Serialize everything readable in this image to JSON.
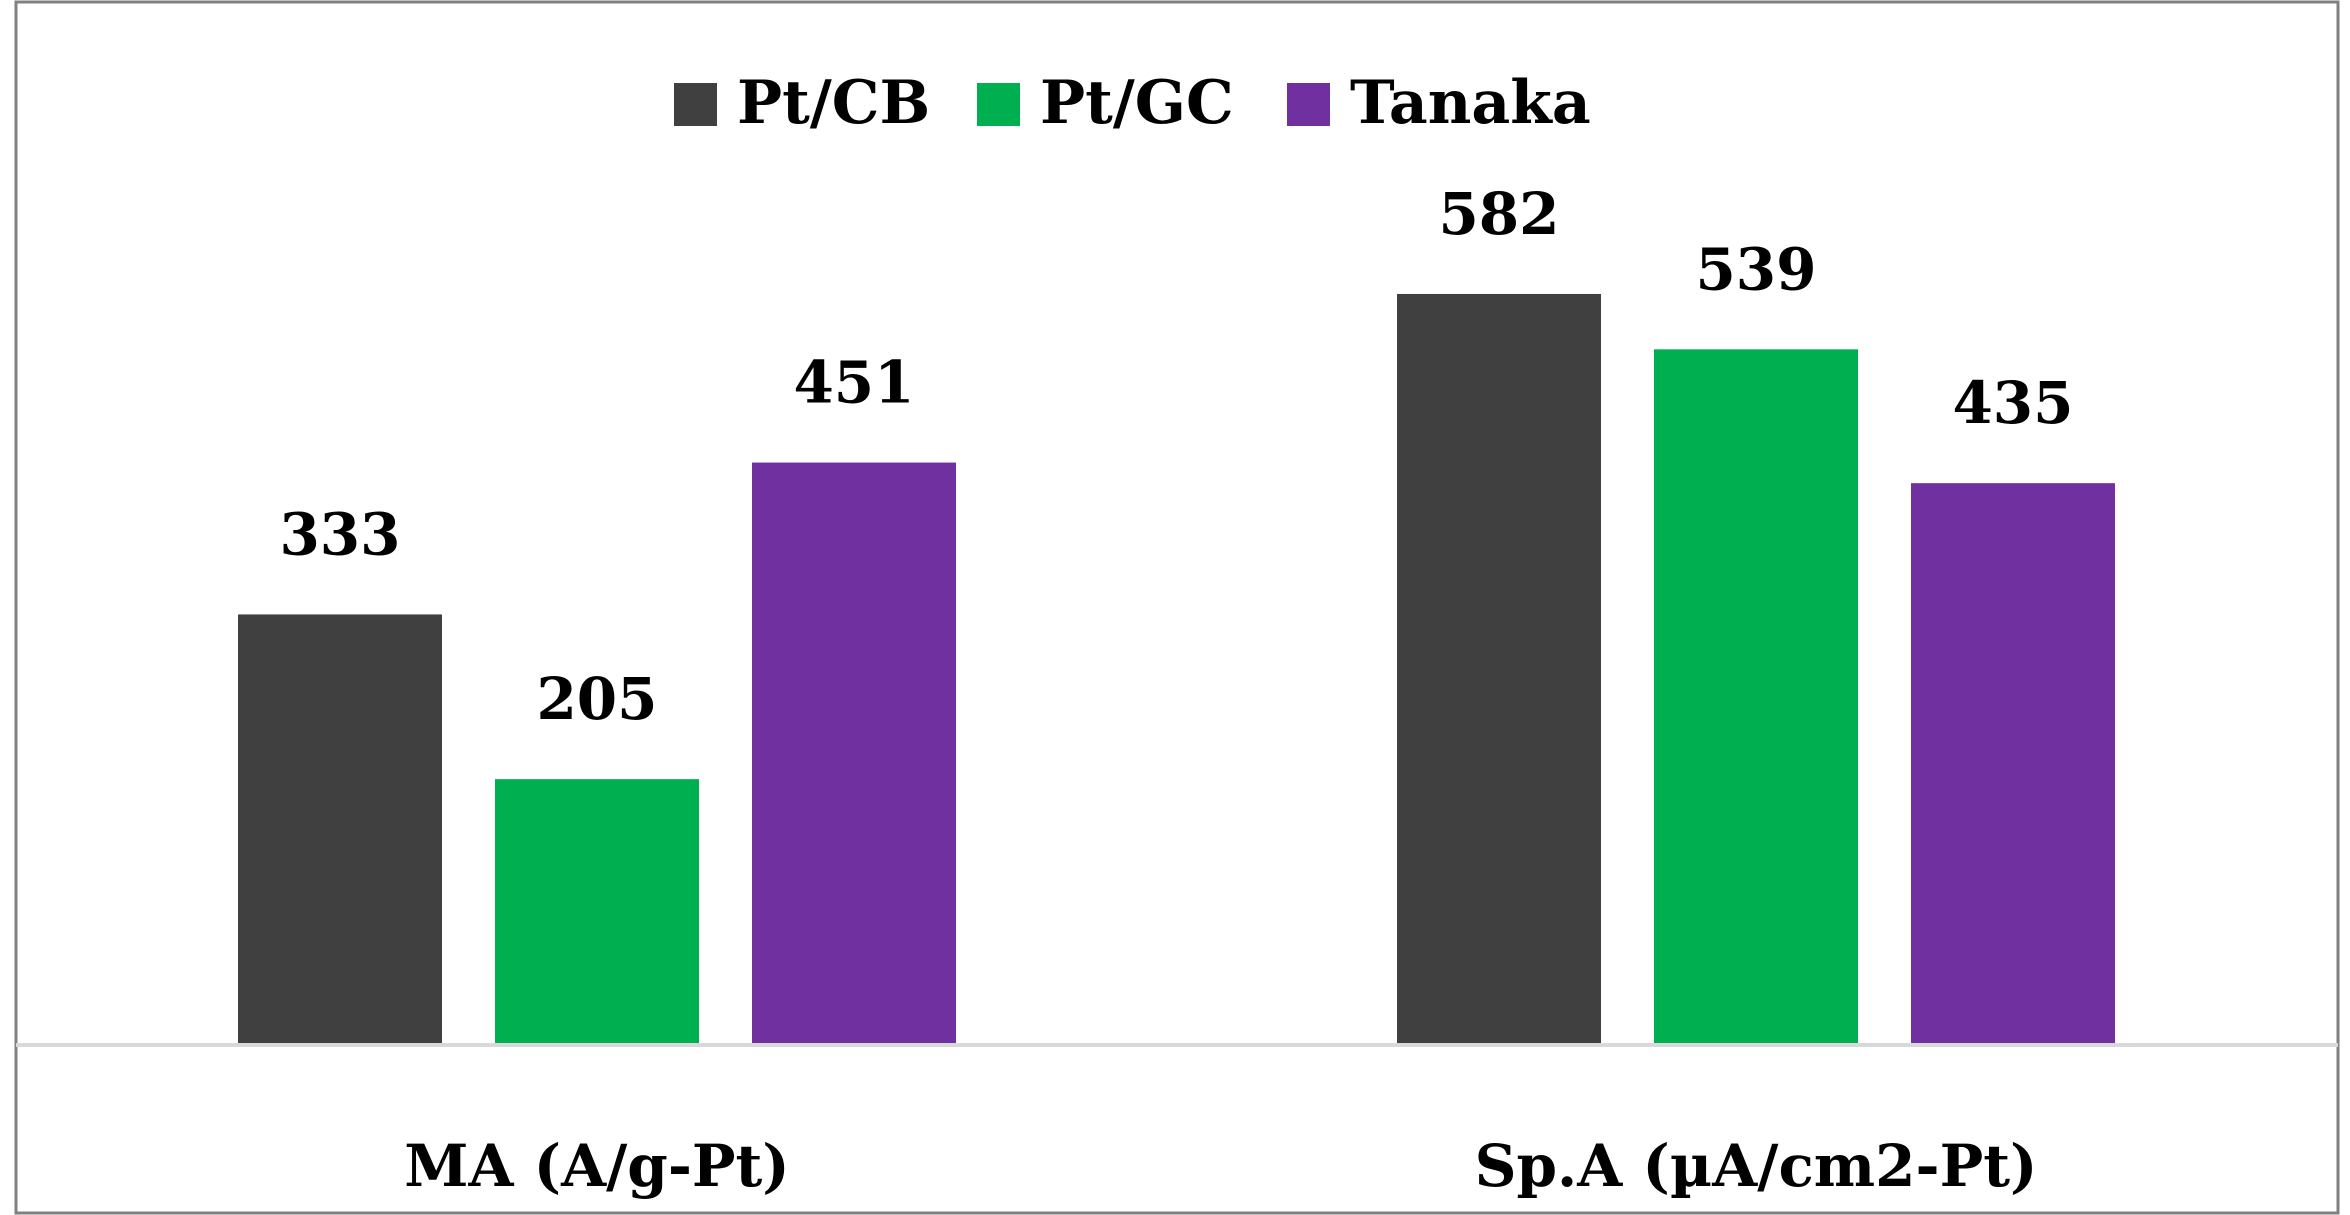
{
  "chart_data": {
    "type": "bar",
    "title": "",
    "xlabel": "",
    "ylabel": "",
    "ylim": [
      0,
      650
    ],
    "grid": false,
    "legend_position": "top-center",
    "categories": [
      "MA (A/g-Pt)",
      "Sp.A (µA/cm2-Pt)"
    ],
    "series": [
      {
        "name": "Pt/CB",
        "color": "#404040",
        "values": [
          333,
          582
        ]
      },
      {
        "name": "Pt/GC",
        "color": "#00b050",
        "values": [
          205,
          539
        ]
      },
      {
        "name": "Tanaka",
        "color": "#7030a0",
        "values": [
          451,
          435
        ]
      }
    ],
    "data_labels": [
      [
        "333",
        "582"
      ],
      [
        "205",
        "539"
      ],
      [
        "451",
        "435"
      ]
    ]
  }
}
